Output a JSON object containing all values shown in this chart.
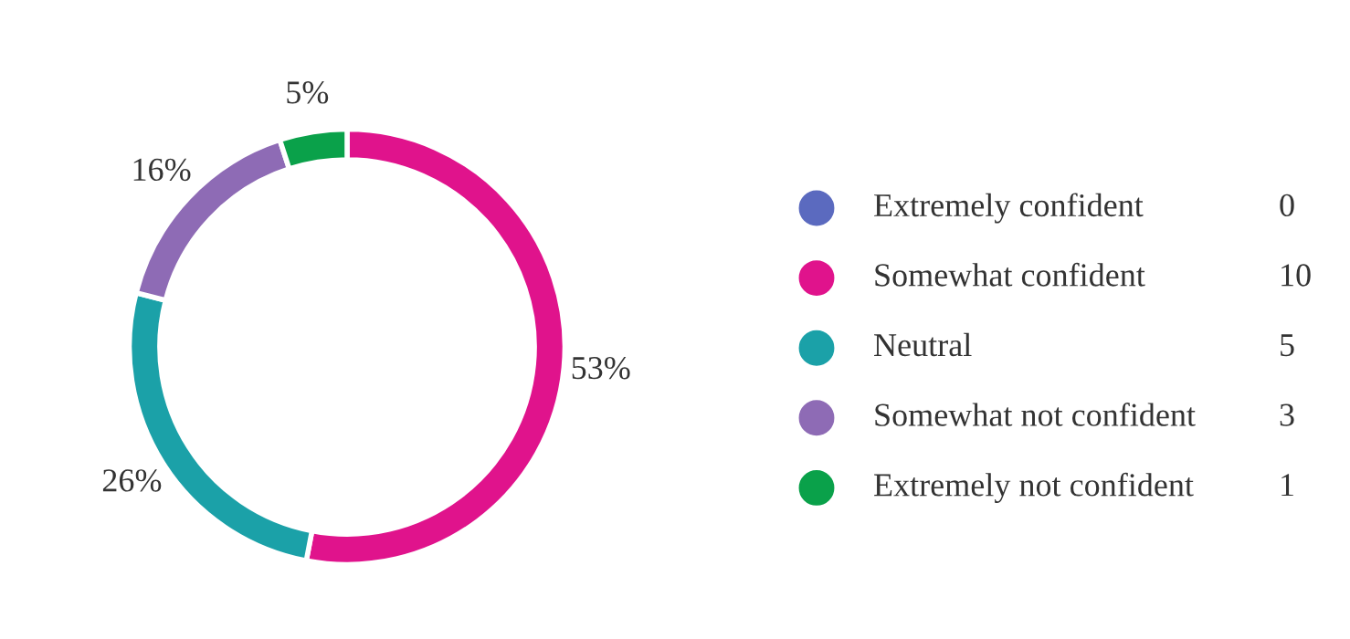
{
  "chart_data": {
    "type": "donut",
    "categories": [
      "Extremely confident",
      "Somewhat confident",
      "Neutral",
      "Somewhat not confident",
      "Extremely not confident"
    ],
    "values": [
      0,
      53,
      26,
      16,
      5
    ],
    "annotations": [
      "0",
      "10",
      "5",
      "3",
      "1"
    ],
    "colors": [
      "#5b6abf",
      "#e0138c",
      "#1ba1a8",
      "#8e6bb5",
      "#0aa14a"
    ],
    "value_labels": [
      null,
      "53%",
      "26%",
      "16%",
      "5%"
    ],
    "legend": "right"
  }
}
